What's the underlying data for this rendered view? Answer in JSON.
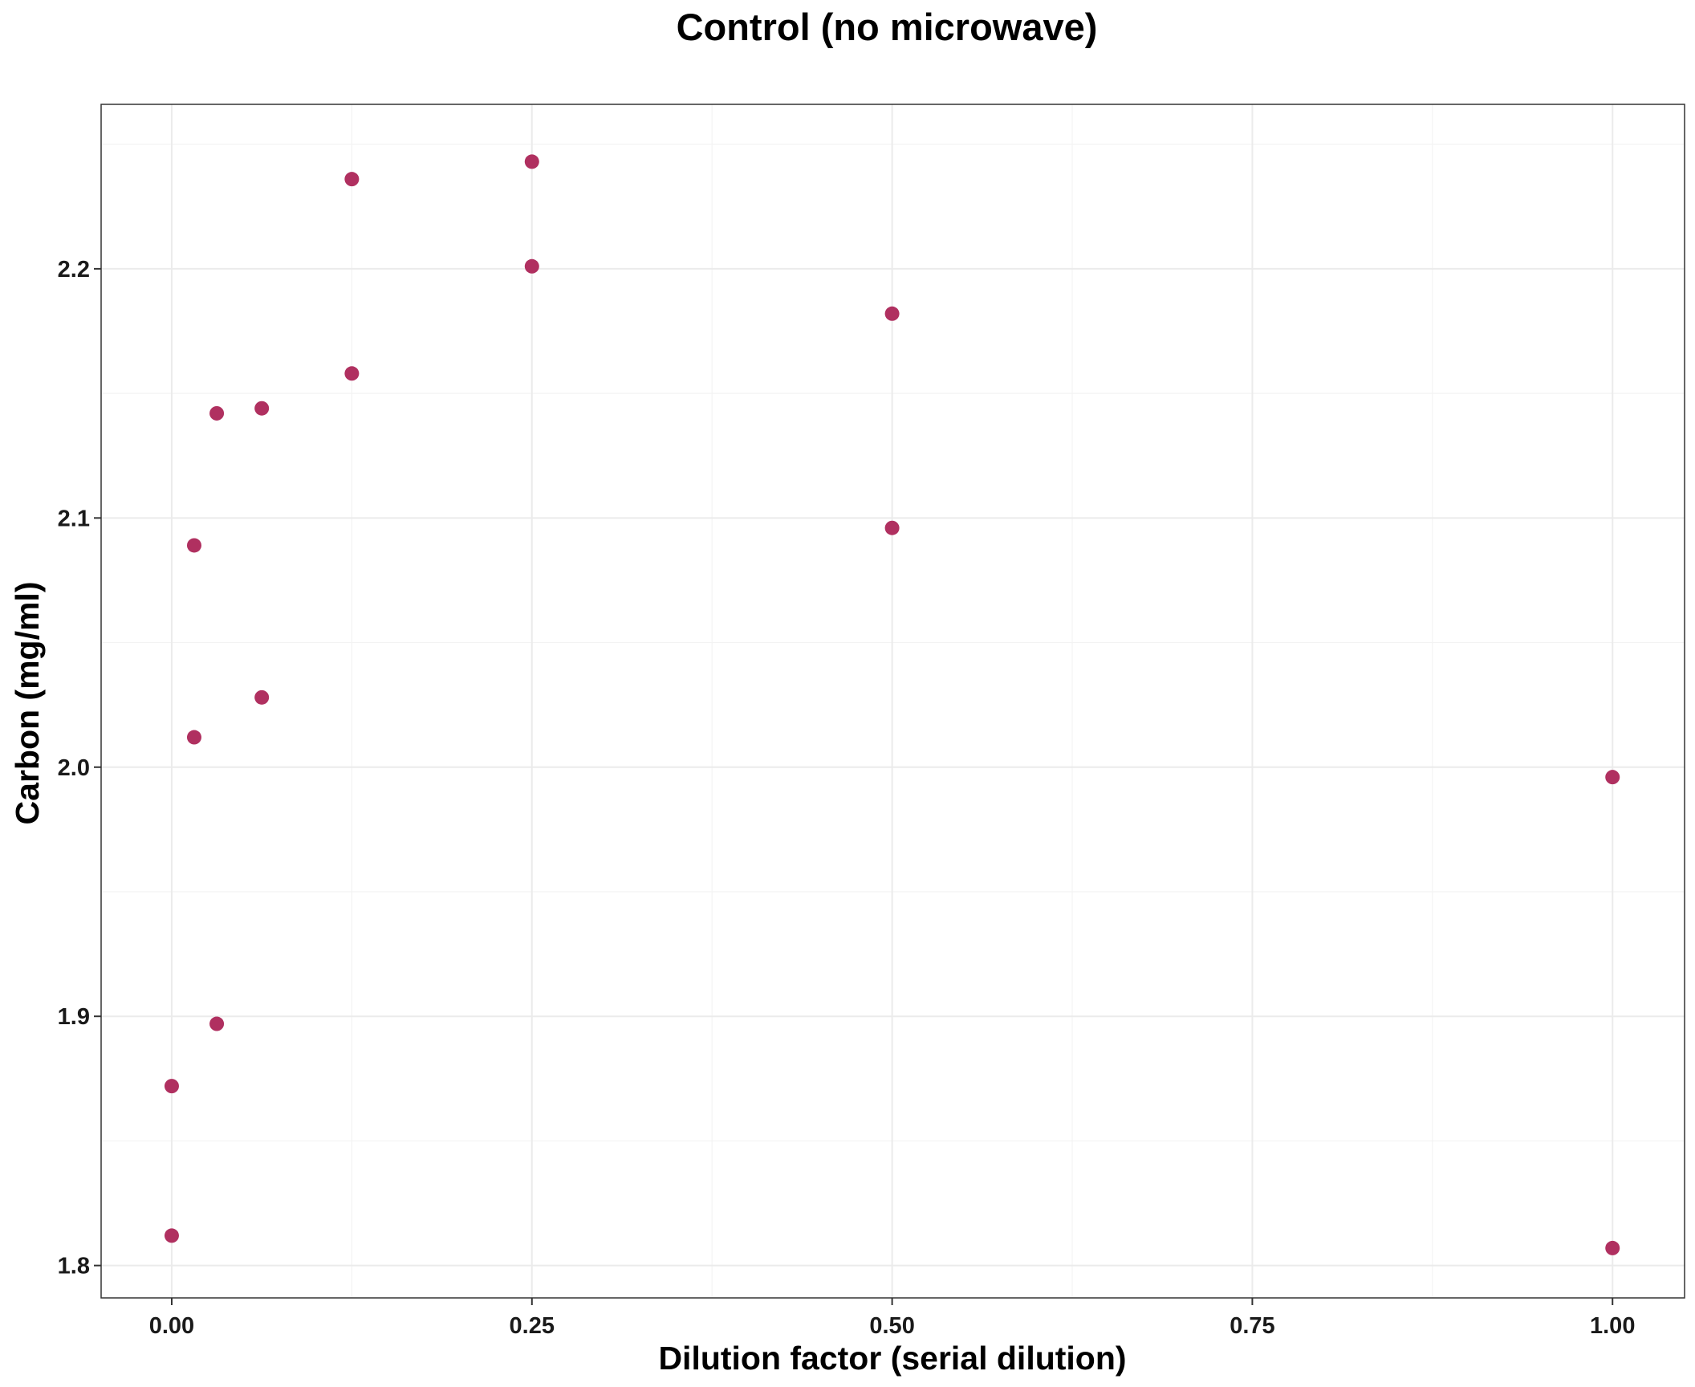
{
  "chart_data": {
    "type": "scatter",
    "title": "Control (no microwave)",
    "xlabel": "Dilution factor (serial dilution)",
    "ylabel": "Carbon (mg/ml)",
    "xlim": [
      -0.049,
      1.05
    ],
    "ylim": [
      1.787,
      2.266
    ],
    "x_ticks": [
      0.0,
      0.25,
      0.5,
      0.75,
      1.0
    ],
    "x_tick_labels": [
      "0.00",
      "0.25",
      "0.50",
      "0.75",
      "1.00"
    ],
    "x_minor_ticks": [
      0.125,
      0.375,
      0.625,
      0.875
    ],
    "y_ticks": [
      1.8,
      1.9,
      2.0,
      2.1,
      2.2
    ],
    "y_tick_labels": [
      "1.8",
      "1.9",
      "2.0",
      "2.1",
      "2.2"
    ],
    "y_minor_ticks": [
      1.85,
      1.95,
      2.05,
      2.15,
      2.25
    ],
    "grid": true,
    "legend": "none",
    "point_color": "#b03060",
    "points": [
      {
        "x": 0.0,
        "y": 1.812
      },
      {
        "x": 0.0,
        "y": 1.872
      },
      {
        "x": 0.0156,
        "y": 2.012
      },
      {
        "x": 0.0156,
        "y": 2.089
      },
      {
        "x": 0.03125,
        "y": 1.897
      },
      {
        "x": 0.03125,
        "y": 2.142
      },
      {
        "x": 0.0625,
        "y": 2.028
      },
      {
        "x": 0.0625,
        "y": 2.144
      },
      {
        "x": 0.125,
        "y": 2.158
      },
      {
        "x": 0.125,
        "y": 2.236
      },
      {
        "x": 0.25,
        "y": 2.201
      },
      {
        "x": 0.25,
        "y": 2.243
      },
      {
        "x": 0.5,
        "y": 2.096
      },
      {
        "x": 0.5,
        "y": 2.182
      },
      {
        "x": 1.0,
        "y": 1.807
      },
      {
        "x": 1.0,
        "y": 1.996
      }
    ]
  }
}
